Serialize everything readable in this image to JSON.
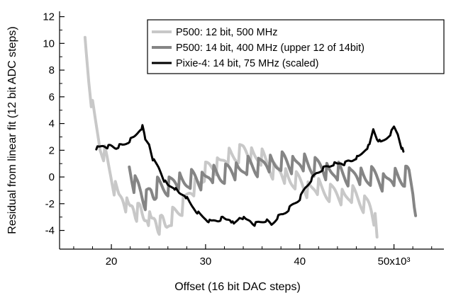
{
  "chart_data": {
    "type": "line",
    "title": "",
    "xlabel": "Offset (16 bit DAC steps)",
    "ylabel": "Residual from linear fit (12 bit ADC steps)",
    "xlim": [
      14.5,
      55.3
    ],
    "ylim": [
      -5.4,
      12.4
    ],
    "x_ticks": [
      {
        "value": 20,
        "label": "20"
      },
      {
        "value": 30,
        "label": "30"
      },
      {
        "value": 40,
        "label": "40"
      },
      {
        "value": 50,
        "label": "50x10³"
      }
    ],
    "y_ticks": [
      -4,
      -2,
      0,
      2,
      4,
      6,
      8,
      10,
      12
    ],
    "grid": false,
    "legend_position": "top-right",
    "series": [
      {
        "name": "P500: 12 bit, 500 MHz",
        "color": "#c8c8c8",
        "line_width": 4,
        "points": [
          [
            17.2,
            10.4
          ],
          [
            17.6,
            7.5
          ],
          [
            18.0,
            5.2
          ],
          [
            18.4,
            3.8
          ],
          [
            18.8,
            2.4
          ],
          [
            19.3,
            1.6
          ],
          [
            19.8,
            0.4
          ],
          [
            20.3,
            -0.6
          ],
          [
            20.8,
            -1.4
          ],
          [
            21.4,
            -1.9
          ],
          [
            22.0,
            -2.3
          ],
          [
            22.8,
            -2.6
          ],
          [
            23.6,
            -3.0
          ],
          [
            24.4,
            -3.3
          ],
          [
            25.2,
            -3.6
          ],
          [
            26.0,
            -3.5
          ],
          [
            27.0,
            -2.6
          ],
          [
            28.0,
            -1.6
          ],
          [
            29.0,
            -0.6
          ],
          [
            30.0,
            0.3
          ],
          [
            31.0,
            0.9
          ],
          [
            32.0,
            1.3
          ],
          [
            33.0,
            1.6
          ],
          [
            34.0,
            1.9
          ],
          [
            35.0,
            1.7
          ],
          [
            36.0,
            1.2
          ],
          [
            37.0,
            0.7
          ],
          [
            38.0,
            0.3
          ],
          [
            39.0,
            -0.2
          ],
          [
            40.0,
            -0.5
          ],
          [
            41.0,
            -0.8
          ],
          [
            42.0,
            -1.0
          ],
          [
            43.0,
            -1.1
          ],
          [
            44.0,
            -1.3
          ],
          [
            45.0,
            -1.4
          ],
          [
            46.0,
            -1.6
          ],
          [
            47.0,
            -1.9
          ],
          [
            47.6,
            -2.4
          ],
          [
            48.0,
            -3.5
          ],
          [
            48.2,
            -4.5
          ]
        ],
        "ripple": 1.4
      },
      {
        "name": "P500: 14 bit, 400 MHz (upper 12 of 14bit)",
        "color": "#858585",
        "line_width": 4,
        "points": [
          [
            21.9,
            0.9
          ],
          [
            22.4,
            -0.2
          ],
          [
            23.0,
            -1.0
          ],
          [
            23.6,
            -1.5
          ],
          [
            24.2,
            -1.2
          ],
          [
            25.0,
            -0.8
          ],
          [
            26.0,
            -0.5
          ],
          [
            27.0,
            -0.4
          ],
          [
            28.0,
            -0.3
          ],
          [
            29.0,
            -0.2
          ],
          [
            30.0,
            -0.1
          ],
          [
            31.0,
            0.1
          ],
          [
            32.0,
            0.3
          ],
          [
            33.0,
            0.5
          ],
          [
            34.0,
            0.6
          ],
          [
            35.0,
            0.8
          ],
          [
            36.0,
            0.9
          ],
          [
            37.0,
            1.0
          ],
          [
            38.0,
            1.1
          ],
          [
            39.0,
            1.1
          ],
          [
            40.0,
            1.0
          ],
          [
            41.0,
            0.9
          ],
          [
            42.0,
            0.7
          ],
          [
            43.0,
            0.5
          ],
          [
            44.0,
            0.3
          ],
          [
            45.0,
            0.2
          ],
          [
            46.0,
            0.1
          ],
          [
            47.0,
            0.0
          ],
          [
            48.0,
            -0.1
          ],
          [
            49.0,
            -0.2
          ],
          [
            50.0,
            -0.1
          ],
          [
            51.0,
            0.0
          ],
          [
            51.6,
            0.1
          ],
          [
            52.0,
            -1.2
          ],
          [
            52.3,
            -2.9
          ]
        ],
        "ripple": 1.5
      },
      {
        "name": "Pixie-4: 14 bit, 75 MHz (scaled)",
        "color": "#000000",
        "line_width": 3,
        "points": [
          [
            18.4,
            2.2
          ],
          [
            19.0,
            2.3
          ],
          [
            19.8,
            2.3
          ],
          [
            20.5,
            2.2
          ],
          [
            21.2,
            2.4
          ],
          [
            21.8,
            2.6
          ],
          [
            22.4,
            3.0
          ],
          [
            23.0,
            3.5
          ],
          [
            23.3,
            3.8
          ],
          [
            23.6,
            2.8
          ],
          [
            24.0,
            2.5
          ],
          [
            24.4,
            1.4
          ],
          [
            25.0,
            0.7
          ],
          [
            25.6,
            -0.2
          ],
          [
            26.0,
            -0.6
          ],
          [
            26.6,
            -0.8
          ],
          [
            27.2,
            -1.2
          ],
          [
            27.8,
            -1.4
          ],
          [
            28.4,
            -2.0
          ],
          [
            29.0,
            -2.6
          ],
          [
            29.6,
            -2.9
          ],
          [
            30.2,
            -3.3
          ],
          [
            31.0,
            -3.3
          ],
          [
            31.8,
            -3.1
          ],
          [
            32.6,
            -3.2
          ],
          [
            33.0,
            -3.6
          ],
          [
            33.6,
            -3.0
          ],
          [
            34.4,
            -3.2
          ],
          [
            35.2,
            -3.5
          ],
          [
            35.8,
            -3.4
          ],
          [
            36.4,
            -3.2
          ],
          [
            37.0,
            -3.6
          ],
          [
            37.6,
            -3.0
          ],
          [
            38.2,
            -2.8
          ],
          [
            38.8,
            -2.4
          ],
          [
            39.4,
            -2.0
          ],
          [
            40.0,
            -1.6
          ],
          [
            40.6,
            -0.8
          ],
          [
            41.2,
            -0.2
          ],
          [
            41.8,
            0.3
          ],
          [
            42.4,
            0.6
          ],
          [
            43.0,
            0.8
          ],
          [
            43.8,
            1.0
          ],
          [
            44.6,
            1.0
          ],
          [
            45.4,
            1.2
          ],
          [
            46.2,
            1.5
          ],
          [
            46.8,
            1.9
          ],
          [
            47.4,
            2.4
          ],
          [
            47.8,
            3.6
          ],
          [
            48.2,
            2.9
          ],
          [
            48.6,
            2.6
          ],
          [
            49.0,
            2.8
          ],
          [
            49.6,
            3.2
          ],
          [
            50.0,
            3.7
          ],
          [
            50.4,
            3.2
          ],
          [
            50.8,
            2.2
          ],
          [
            51.0,
            1.9
          ]
        ],
        "ripple": 0.25
      }
    ]
  }
}
